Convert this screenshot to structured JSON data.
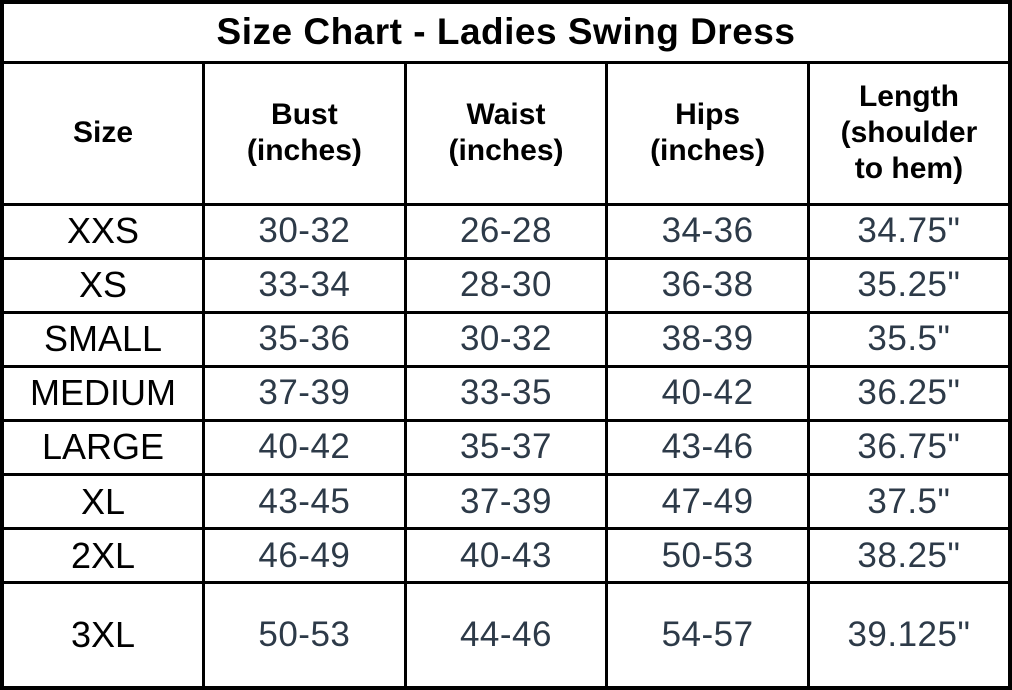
{
  "title": "Size Chart - Ladies Swing Dress",
  "colors": {
    "border": "#000000",
    "header_text": "#000000",
    "size_label_text": "#000000",
    "value_text": "#2d3a48",
    "background": "#ffffff"
  },
  "chart_data": {
    "type": "table",
    "title": "Size Chart - Ladies Swing Dress",
    "columns": [
      "Size",
      "Bust\n(inches)",
      "Waist\n(inches)",
      "Hips\n(inches)",
      "Length\n(shoulder\nto hem)"
    ],
    "rows": [
      {
        "size": "XXS",
        "bust": "30-32",
        "waist": "26-28",
        "hips": "34-36",
        "length": "34.75\""
      },
      {
        "size": "XS",
        "bust": "33-34",
        "waist": "28-30",
        "hips": "36-38",
        "length": "35.25\""
      },
      {
        "size": "SMALL",
        "bust": "35-36",
        "waist": "30-32",
        "hips": "38-39",
        "length": "35.5\""
      },
      {
        "size": "MEDIUM",
        "bust": "37-39",
        "waist": "33-35",
        "hips": "40-42",
        "length": "36.25\""
      },
      {
        "size": "LARGE",
        "bust": "40-42",
        "waist": "35-37",
        "hips": "43-46",
        "length": "36.75\""
      },
      {
        "size": "XL",
        "bust": "43-45",
        "waist": "37-39",
        "hips": "47-49",
        "length": "37.5\""
      },
      {
        "size": "2XL",
        "bust": "46-49",
        "waist": "40-43",
        "hips": "50-53",
        "length": "38.25\""
      },
      {
        "size": "3XL",
        "bust": "50-53",
        "waist": "44-46",
        "hips": "54-57",
        "length": "39.125\""
      }
    ]
  }
}
